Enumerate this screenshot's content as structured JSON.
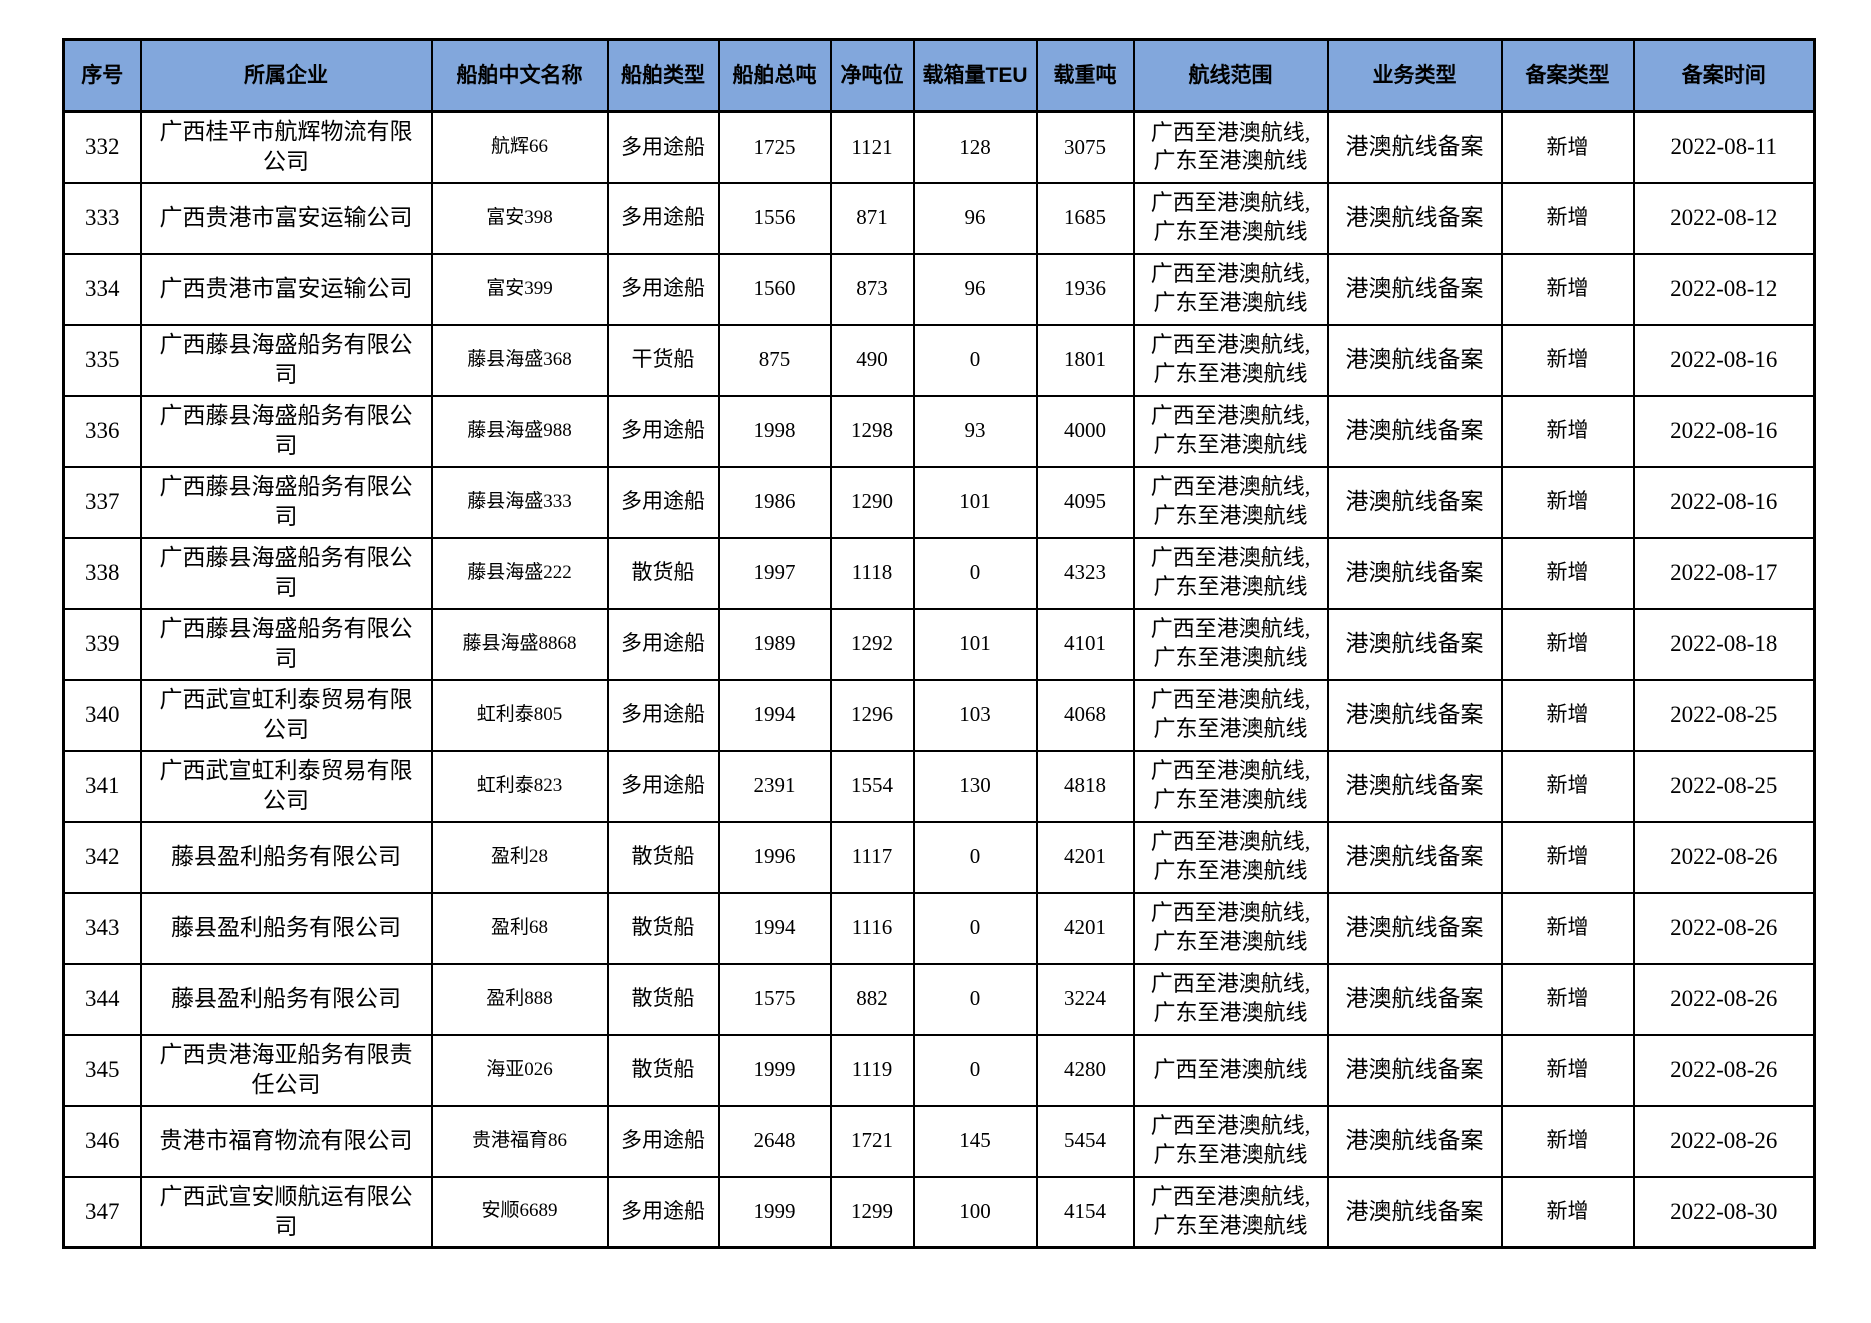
{
  "colors": {
    "page_bg": "#FFFFFF",
    "header_bg": "#82A7DC",
    "border": "#000000",
    "text": "#000000"
  },
  "columns": [
    "序号",
    "所属企业",
    "船舶中文名称",
    "船舶类型",
    "船舶总吨",
    "净吨位",
    "载箱量TEU",
    "载重吨",
    "航线范围",
    "业务类型",
    "备案类型",
    "备案时间"
  ],
  "rows": [
    {
      "seq": "332",
      "company": "广西桂平市航辉物流有限公司",
      "ship_name": "航辉66",
      "ship_type": "多用途船",
      "gross_tonnage": "1725",
      "net_tonnage": "1121",
      "teu": "128",
      "deadweight": "3075",
      "route": "广西至港澳航线,\n广东至港澳航线",
      "business_type": "港澳航线备案",
      "filing_type": "新增",
      "filing_date": "2022-08-11"
    },
    {
      "seq": "333",
      "company": "广西贵港市富安运输公司",
      "ship_name": "富安398",
      "ship_type": "多用途船",
      "gross_tonnage": "1556",
      "net_tonnage": "871",
      "teu": "96",
      "deadweight": "1685",
      "route": "广西至港澳航线,\n广东至港澳航线",
      "business_type": "港澳航线备案",
      "filing_type": "新增",
      "filing_date": "2022-08-12"
    },
    {
      "seq": "334",
      "company": "广西贵港市富安运输公司",
      "ship_name": "富安399",
      "ship_type": "多用途船",
      "gross_tonnage": "1560",
      "net_tonnage": "873",
      "teu": "96",
      "deadweight": "1936",
      "route": "广西至港澳航线,\n广东至港澳航线",
      "business_type": "港澳航线备案",
      "filing_type": "新增",
      "filing_date": "2022-08-12"
    },
    {
      "seq": "335",
      "company": "广西藤县海盛船务有限公司",
      "ship_name": "藤县海盛368",
      "ship_type": "干货船",
      "gross_tonnage": "875",
      "net_tonnage": "490",
      "teu": "0",
      "deadweight": "1801",
      "route": "广西至港澳航线,\n广东至港澳航线",
      "business_type": "港澳航线备案",
      "filing_type": "新增",
      "filing_date": "2022-08-16"
    },
    {
      "seq": "336",
      "company": "广西藤县海盛船务有限公司",
      "ship_name": "藤县海盛988",
      "ship_type": "多用途船",
      "gross_tonnage": "1998",
      "net_tonnage": "1298",
      "teu": "93",
      "deadweight": "4000",
      "route": "广西至港澳航线,\n广东至港澳航线",
      "business_type": "港澳航线备案",
      "filing_type": "新增",
      "filing_date": "2022-08-16"
    },
    {
      "seq": "337",
      "company": "广西藤县海盛船务有限公司",
      "ship_name": "藤县海盛333",
      "ship_type": "多用途船",
      "gross_tonnage": "1986",
      "net_tonnage": "1290",
      "teu": "101",
      "deadweight": "4095",
      "route": "广西至港澳航线,\n广东至港澳航线",
      "business_type": "港澳航线备案",
      "filing_type": "新增",
      "filing_date": "2022-08-16"
    },
    {
      "seq": "338",
      "company": "广西藤县海盛船务有限公司",
      "ship_name": "藤县海盛222",
      "ship_type": "散货船",
      "gross_tonnage": "1997",
      "net_tonnage": "1118",
      "teu": "0",
      "deadweight": "4323",
      "route": "广西至港澳航线,\n广东至港澳航线",
      "business_type": "港澳航线备案",
      "filing_type": "新增",
      "filing_date": "2022-08-17"
    },
    {
      "seq": "339",
      "company": "广西藤县海盛船务有限公司",
      "ship_name": "藤县海盛8868",
      "ship_type": "多用途船",
      "gross_tonnage": "1989",
      "net_tonnage": "1292",
      "teu": "101",
      "deadweight": "4101",
      "route": "广西至港澳航线,\n广东至港澳航线",
      "business_type": "港澳航线备案",
      "filing_type": "新增",
      "filing_date": "2022-08-18"
    },
    {
      "seq": "340",
      "company": "广西武宣虹利泰贸易有限公司",
      "ship_name": "虹利泰805",
      "ship_type": "多用途船",
      "gross_tonnage": "1994",
      "net_tonnage": "1296",
      "teu": "103",
      "deadweight": "4068",
      "route": "广西至港澳航线,\n广东至港澳航线",
      "business_type": "港澳航线备案",
      "filing_type": "新增",
      "filing_date": "2022-08-25"
    },
    {
      "seq": "341",
      "company": "广西武宣虹利泰贸易有限公司",
      "ship_name": "虹利泰823",
      "ship_type": "多用途船",
      "gross_tonnage": "2391",
      "net_tonnage": "1554",
      "teu": "130",
      "deadweight": "4818",
      "route": "广西至港澳航线,\n广东至港澳航线",
      "business_type": "港澳航线备案",
      "filing_type": "新增",
      "filing_date": "2022-08-25"
    },
    {
      "seq": "342",
      "company": "藤县盈利船务有限公司",
      "ship_name": "盈利28",
      "ship_type": "散货船",
      "gross_tonnage": "1996",
      "net_tonnage": "1117",
      "teu": "0",
      "deadweight": "4201",
      "route": "广西至港澳航线,\n广东至港澳航线",
      "business_type": "港澳航线备案",
      "filing_type": "新增",
      "filing_date": "2022-08-26"
    },
    {
      "seq": "343",
      "company": "藤县盈利船务有限公司",
      "ship_name": "盈利68",
      "ship_type": "散货船",
      "gross_tonnage": "1994",
      "net_tonnage": "1116",
      "teu": "0",
      "deadweight": "4201",
      "route": "广西至港澳航线,\n广东至港澳航线",
      "business_type": "港澳航线备案",
      "filing_type": "新增",
      "filing_date": "2022-08-26"
    },
    {
      "seq": "344",
      "company": "藤县盈利船务有限公司",
      "ship_name": "盈利888",
      "ship_type": "散货船",
      "gross_tonnage": "1575",
      "net_tonnage": "882",
      "teu": "0",
      "deadweight": "3224",
      "route": "广西至港澳航线,\n广东至港澳航线",
      "business_type": "港澳航线备案",
      "filing_type": "新增",
      "filing_date": "2022-08-26"
    },
    {
      "seq": "345",
      "company": "广西贵港海亚船务有限责任公司",
      "ship_name": "海亚026",
      "ship_type": "散货船",
      "gross_tonnage": "1999",
      "net_tonnage": "1119",
      "teu": "0",
      "deadweight": "4280",
      "route": "广西至港澳航线",
      "business_type": "港澳航线备案",
      "filing_type": "新增",
      "filing_date": "2022-08-26"
    },
    {
      "seq": "346",
      "company": "贵港市福育物流有限公司",
      "ship_name": "贵港福育86",
      "ship_type": "多用途船",
      "gross_tonnage": "2648",
      "net_tonnage": "1721",
      "teu": "145",
      "deadweight": "5454",
      "route": "广西至港澳航线,\n广东至港澳航线",
      "business_type": "港澳航线备案",
      "filing_type": "新增",
      "filing_date": "2022-08-26"
    },
    {
      "seq": "347",
      "company": "广西武宣安顺航运有限公司",
      "ship_name": "安顺6689",
      "ship_type": "多用途船",
      "gross_tonnage": "1999",
      "net_tonnage": "1299",
      "teu": "100",
      "deadweight": "4154",
      "route": "广西至港澳航线,\n广东至港澳航线",
      "business_type": "港澳航线备案",
      "filing_type": "新增",
      "filing_date": "2022-08-30"
    }
  ]
}
